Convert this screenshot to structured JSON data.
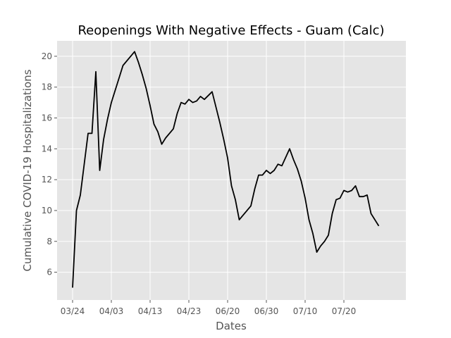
{
  "chart_data": {
    "type": "line",
    "title": "Reopenings With Negative Effects - Guam (Calc)",
    "xlabel": "Dates",
    "ylabel": "Cumulative COVID-19 Hospitalizations",
    "background": "#e5e5e5",
    "grid": true,
    "grid_color": "#ffffff",
    "line_color": "#000000",
    "xlim": [
      -4,
      86
    ],
    "ylim": [
      4.2,
      21.0
    ],
    "x_ticks": [
      {
        "value": 0,
        "label": "03/24"
      },
      {
        "value": 10,
        "label": "04/03"
      },
      {
        "value": 20,
        "label": "04/13"
      },
      {
        "value": 30,
        "label": "04/23"
      },
      {
        "value": 40,
        "label": "06/20"
      },
      {
        "value": 50,
        "label": "06/30"
      },
      {
        "value": 60,
        "label": "07/10"
      },
      {
        "value": 70,
        "label": "07/20"
      }
    ],
    "y_ticks": [
      6,
      8,
      10,
      12,
      14,
      16,
      18,
      20
    ],
    "series": [
      {
        "points": [
          [
            0,
            5.0
          ],
          [
            1,
            10.0
          ],
          [
            2,
            11.0
          ],
          [
            3,
            13.0
          ],
          [
            4,
            15.0
          ],
          [
            5,
            15.0
          ],
          [
            6,
            19.0
          ],
          [
            7,
            12.6
          ],
          [
            8,
            14.6
          ],
          [
            9,
            15.9
          ],
          [
            10,
            17.0
          ],
          [
            11,
            17.8
          ],
          [
            12,
            18.6
          ],
          [
            13,
            19.4
          ],
          [
            16,
            20.3
          ],
          [
            17,
            19.6
          ],
          [
            18,
            18.8
          ],
          [
            19,
            17.9
          ],
          [
            20,
            16.8
          ],
          [
            21,
            15.6
          ],
          [
            22,
            15.1
          ],
          [
            23,
            14.3
          ],
          [
            24,
            14.7
          ],
          [
            26,
            15.3
          ],
          [
            27,
            16.3
          ],
          [
            28,
            17.0
          ],
          [
            29,
            16.9
          ],
          [
            30,
            17.2
          ],
          [
            31,
            17.0
          ],
          [
            32,
            17.1
          ],
          [
            33,
            17.4
          ],
          [
            34,
            17.2
          ],
          [
            36,
            17.7
          ],
          [
            37,
            16.7
          ],
          [
            38,
            15.7
          ],
          [
            39,
            14.6
          ],
          [
            40,
            13.4
          ],
          [
            41,
            11.6
          ],
          [
            42,
            10.7
          ],
          [
            43,
            9.4
          ],
          [
            46,
            10.3
          ],
          [
            47,
            11.4
          ],
          [
            48,
            12.3
          ],
          [
            49,
            12.3
          ],
          [
            50,
            12.6
          ],
          [
            51,
            12.4
          ],
          [
            52,
            12.6
          ],
          [
            53,
            13.0
          ],
          [
            54,
            12.9
          ],
          [
            56,
            14.0
          ],
          [
            57,
            13.3
          ],
          [
            58,
            12.7
          ],
          [
            59,
            11.9
          ],
          [
            60,
            10.8
          ],
          [
            61,
            9.4
          ],
          [
            62,
            8.5
          ],
          [
            63,
            7.3
          ],
          [
            64,
            7.7
          ],
          [
            65,
            8.0
          ],
          [
            66,
            8.4
          ],
          [
            67,
            9.8
          ],
          [
            68,
            10.7
          ],
          [
            69,
            10.8
          ],
          [
            70,
            11.3
          ],
          [
            71,
            11.2
          ],
          [
            72,
            11.3
          ],
          [
            73,
            11.6
          ],
          [
            74,
            10.9
          ],
          [
            75,
            10.9
          ],
          [
            76,
            11.0
          ],
          [
            77,
            9.8
          ],
          [
            79,
            9.0
          ]
        ]
      }
    ]
  }
}
